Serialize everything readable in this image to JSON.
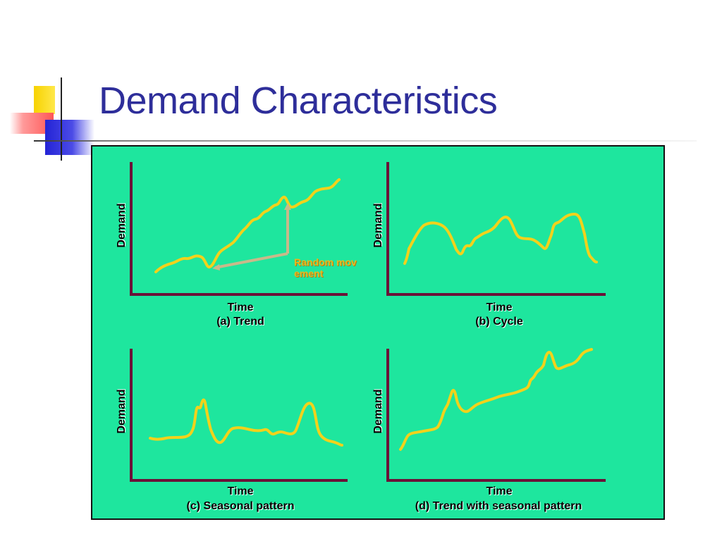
{
  "slide": {
    "title": "Demand Characteristics"
  },
  "colors": {
    "title": "#2e2e9a",
    "panel_background": "#1ee69e",
    "axis": "#6b1238",
    "curve": "#f2d21b",
    "arrow": "#c9b98a",
    "annotation": "#e8b820"
  },
  "panels": [
    {
      "x_label": "Time",
      "y_label": "Demand",
      "caption": "(a) Trend"
    },
    {
      "x_label": "Time",
      "y_label": "Demand",
      "caption": "(b) Cycle"
    },
    {
      "x_label": "Time",
      "y_label": "Demand",
      "caption": "(c) Seasonal pattern"
    },
    {
      "x_label": "Time",
      "y_label": "Demand",
      "caption": "(d) Trend with seasonal pattern"
    }
  ],
  "annotation": {
    "text": "Random movement"
  }
}
